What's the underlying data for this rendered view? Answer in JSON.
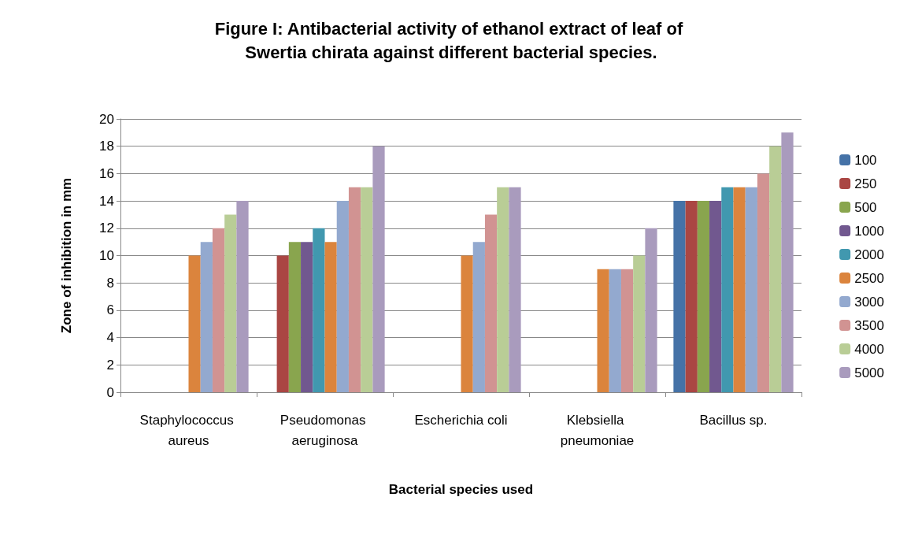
{
  "chart_data": {
    "type": "bar",
    "title": "Figure I: Antibacterial activity of ethanol extract of leaf of Swertia chirata against different bacterial species.",
    "xlabel": "Bacterial species used",
    "ylabel": "Zone of inhibition in mm",
    "categories": [
      "Staphylococcus aureus",
      "Pseudomonas aeruginosa",
      "Escherichia coli",
      "Klebsiella pneumoniae",
      "Bacillus sp."
    ],
    "series": [
      {
        "name": "100",
        "color": "#4572a7",
        "values": [
          0,
          0,
          0,
          0,
          14
        ]
      },
      {
        "name": "250",
        "color": "#aa4643",
        "values": [
          0,
          10,
          0,
          0,
          14
        ]
      },
      {
        "name": "500",
        "color": "#89a54e",
        "values": [
          0,
          11,
          0,
          0,
          14
        ]
      },
      {
        "name": "1000",
        "color": "#71588f",
        "values": [
          0,
          11,
          0,
          0,
          14
        ]
      },
      {
        "name": "2000",
        "color": "#4198af",
        "values": [
          0,
          12,
          0,
          0,
          15
        ]
      },
      {
        "name": "2500",
        "color": "#db843d",
        "values": [
          10,
          11,
          10,
          9,
          15
        ]
      },
      {
        "name": "3000",
        "color": "#93a9cf",
        "values": [
          11,
          14,
          11,
          9,
          15
        ]
      },
      {
        "name": "3500",
        "color": "#d19392",
        "values": [
          12,
          15,
          13,
          9,
          16
        ]
      },
      {
        "name": "4000",
        "color": "#b9cd96",
        "values": [
          13,
          15,
          15,
          10,
          18
        ]
      },
      {
        "name": "5000",
        "color": "#a99bbd",
        "values": [
          14,
          18,
          15,
          12,
          19
        ]
      }
    ],
    "ylim": [
      0,
      20
    ],
    "yticks": [
      0,
      2,
      4,
      6,
      8,
      10,
      12,
      14,
      16,
      18,
      20
    ],
    "grid": "y",
    "legend": "right"
  }
}
